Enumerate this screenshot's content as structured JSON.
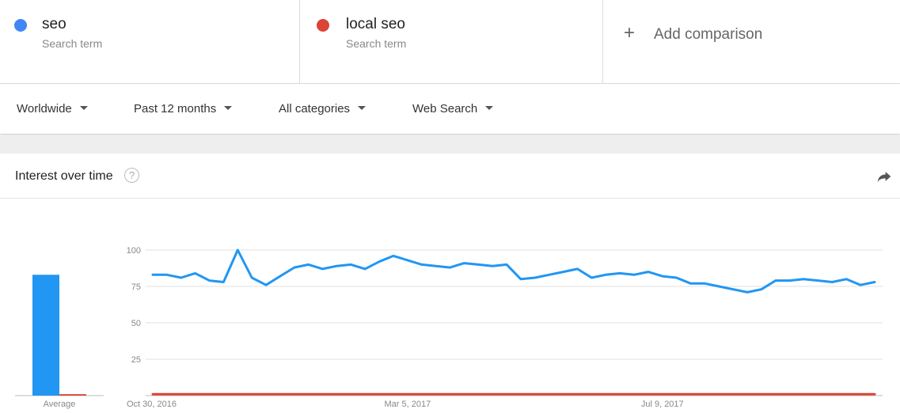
{
  "terms": [
    {
      "name": "seo",
      "subtitle": "Search term",
      "color": "#4285f4"
    },
    {
      "name": "local seo",
      "subtitle": "Search term",
      "color": "#db4437"
    }
  ],
  "add_comparison": {
    "icon": "plus-icon",
    "label": "Add comparison"
  },
  "filters": {
    "region": "Worldwide",
    "time_range": "Past 12 months",
    "category": "All categories",
    "search_type": "Web Search"
  },
  "card": {
    "title": "Interest over time",
    "help_icon": "help-circle-icon",
    "share_icon": "share-arrow-icon"
  },
  "chart_data": {
    "type": "line",
    "ylim": [
      0,
      100
    ],
    "y_ticks": [
      25,
      50,
      75,
      100
    ],
    "grid": true,
    "x_tick_labels": [
      {
        "index": 0,
        "label": "Oct 30, 2016"
      },
      {
        "index": 18,
        "label": "Mar 5, 2017"
      },
      {
        "index": 36,
        "label": "Jul 9, 2017"
      }
    ],
    "series": [
      {
        "name": "seo",
        "color": "#2196f3",
        "values": [
          83,
          83,
          81,
          84,
          79,
          78,
          100,
          81,
          76,
          82,
          88,
          90,
          87,
          89,
          90,
          87,
          92,
          96,
          93,
          90,
          89,
          88,
          91,
          90,
          89,
          90,
          80,
          81,
          83,
          85,
          87,
          81,
          83,
          84,
          83,
          85,
          82,
          81,
          77,
          77,
          75,
          73,
          71,
          73,
          79,
          79,
          80,
          79,
          78,
          80,
          76,
          78
        ]
      },
      {
        "name": "local seo",
        "color": "#db4437",
        "values": [
          1,
          1,
          1,
          1,
          1,
          1,
          1,
          1,
          1,
          1,
          1,
          1,
          1,
          1,
          1,
          1,
          1,
          1,
          1,
          1,
          1,
          1,
          1,
          1,
          1,
          1,
          1,
          1,
          1,
          1,
          1,
          1,
          1,
          1,
          1,
          1,
          1,
          1,
          1,
          1,
          1,
          1,
          1,
          1,
          1,
          1,
          1,
          1,
          1,
          1,
          1,
          1
        ]
      }
    ],
    "average": {
      "label": "Average",
      "values": [
        83,
        1
      ]
    }
  }
}
